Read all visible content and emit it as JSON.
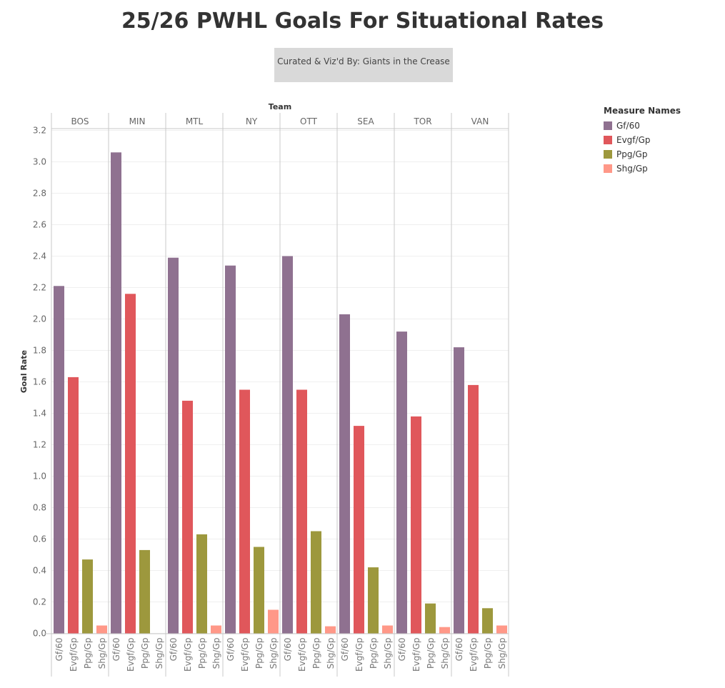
{
  "chart_data": {
    "type": "bar",
    "title": "25/26 PWHL Goals For Situational Rates",
    "subtitle": "Curated & Viz'd By: Giants in the Crease",
    "column_header": "Team",
    "ylabel": "Goal Rate",
    "ylim": [
      0,
      3.2
    ],
    "yticks": [
      "0.0",
      "0.2",
      "0.4",
      "0.6",
      "0.8",
      "1.0",
      "1.2",
      "1.4",
      "1.6",
      "1.8",
      "2.0",
      "2.2",
      "2.4",
      "2.6",
      "2.8",
      "3.0",
      "3.2"
    ],
    "grid": true,
    "legend_title": "Measure Names",
    "legend_position": "right",
    "categories": [
      "BOS",
      "MIN",
      "MTL",
      "NY",
      "OTT",
      "SEA",
      "TOR",
      "VAN"
    ],
    "series": [
      {
        "name": "Gf/60",
        "color": "#8f7190",
        "values": [
          2.21,
          3.06,
          2.39,
          2.34,
          2.4,
          2.03,
          1.92,
          1.82
        ]
      },
      {
        "name": "Evgf/Gp",
        "color": "#e0575b",
        "values": [
          1.63,
          2.16,
          1.48,
          1.55,
          1.55,
          1.32,
          1.38,
          1.58
        ]
      },
      {
        "name": "Ppg/Gp",
        "color": "#9d983d",
        "values": [
          0.47,
          0.53,
          0.63,
          0.55,
          0.65,
          0.42,
          0.19,
          0.16
        ]
      },
      {
        "name": "Shg/Gp",
        "color": "#ff9888",
        "values": [
          0.05,
          0.0,
          0.05,
          0.15,
          0.045,
          0.05,
          0.04,
          0.05
        ]
      }
    ]
  }
}
